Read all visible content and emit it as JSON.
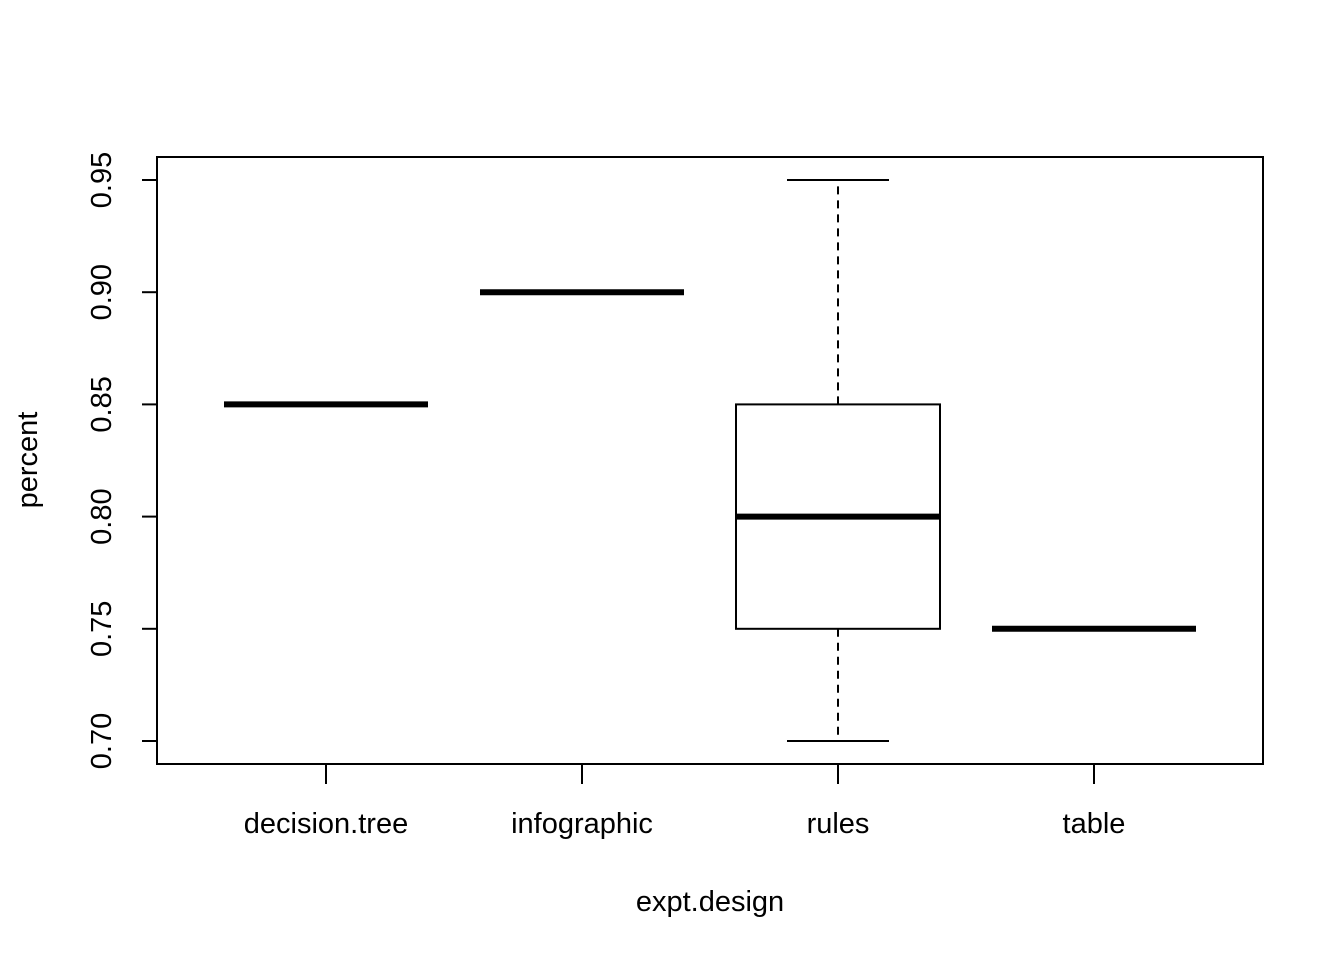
{
  "chart_data": {
    "type": "boxplot",
    "title": "",
    "xlabel": "expt.design",
    "ylabel": "percent",
    "categories": [
      "decision.tree",
      "infographic",
      "rules",
      "table"
    ],
    "boxes": [
      {
        "category": "decision.tree",
        "min": 0.85,
        "q1": 0.85,
        "median": 0.85,
        "q3": 0.85,
        "max": 0.85
      },
      {
        "category": "infographic",
        "min": 0.9,
        "q1": 0.9,
        "median": 0.9,
        "q3": 0.9,
        "max": 0.9
      },
      {
        "category": "rules",
        "min": 0.7,
        "q1": 0.75,
        "median": 0.8,
        "q3": 0.85,
        "max": 0.95
      },
      {
        "category": "table",
        "min": 0.75,
        "q1": 0.75,
        "median": 0.75,
        "q3": 0.75,
        "max": 0.75
      }
    ],
    "yticks": [
      0.7,
      0.75,
      0.8,
      0.85,
      0.9,
      0.95
    ],
    "ytick_labels": [
      "0.70",
      "0.75",
      "0.80",
      "0.85",
      "0.90",
      "0.95"
    ],
    "ylim": [
      0.69,
      0.96
    ],
    "grid": false,
    "colors": {
      "stroke": "#000000",
      "box_fill": "#ffffff"
    }
  }
}
